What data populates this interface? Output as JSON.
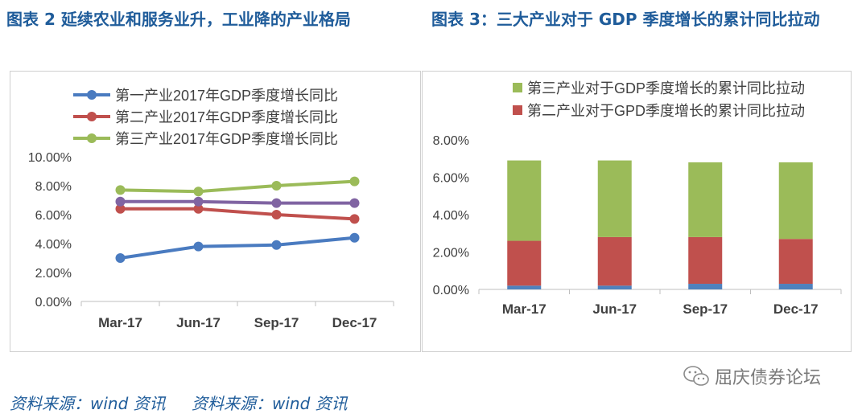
{
  "titles": {
    "left": "图表 2 延续农业和服务业升，工业降的产业格局",
    "right": "图表 3：三大产业对于 GDP 季度增长的累计同比拉动"
  },
  "sources": {
    "left": "资料来源：wind 资讯",
    "right": "资料来源：wind 资讯"
  },
  "watermark": {
    "text": "屈庆债券论坛",
    "icon": "wechat-icon"
  },
  "chart_data": [
    {
      "type": "line",
      "categories": [
        "Mar-17",
        "Jun-17",
        "Sep-17",
        "Dec-17"
      ],
      "ylim": [
        0,
        10
      ],
      "yticks": [
        "0.00%",
        "2.00%",
        "4.00%",
        "6.00%",
        "8.00%",
        "10.00%"
      ],
      "legend_position": "top-left",
      "series": [
        {
          "name": "第一产业2017年GDP季度增长同比",
          "color": "#4a7bc0",
          "values": [
            3.0,
            3.8,
            3.9,
            4.4
          ]
        },
        {
          "name": "第二产业2017年GDP季度增长同比",
          "color": "#c0504d",
          "values": [
            6.4,
            6.4,
            6.0,
            5.7
          ]
        },
        {
          "name": "第三产业2017年GDP季度增长同比",
          "color": "#9bbb59",
          "values": [
            7.7,
            7.6,
            8.0,
            8.3
          ]
        },
        {
          "name": "",
          "color": "#8064a2",
          "values": [
            6.9,
            6.9,
            6.8,
            6.8
          ]
        }
      ]
    },
    {
      "type": "bar",
      "stacked": true,
      "categories": [
        "Mar-17",
        "Jun-17",
        "Sep-17",
        "Dec-17"
      ],
      "ylim": [
        0,
        8
      ],
      "yticks": [
        "0.00%",
        "2.00%",
        "4.00%",
        "6.00%",
        "8.00%"
      ],
      "legend_position": "top",
      "series": [
        {
          "name": "",
          "color": "#4f81bd",
          "values": [
            0.2,
            0.2,
            0.3,
            0.3
          ]
        },
        {
          "name": "第二产业对于GPD季度增长的累计同比拉动",
          "color": "#c0504d",
          "values": [
            2.4,
            2.6,
            2.5,
            2.4
          ]
        },
        {
          "name": "第三产业对于GDP季度增长的累计同比拉动",
          "color": "#9bbb59",
          "values": [
            4.3,
            4.1,
            4.0,
            4.1
          ]
        }
      ]
    }
  ]
}
